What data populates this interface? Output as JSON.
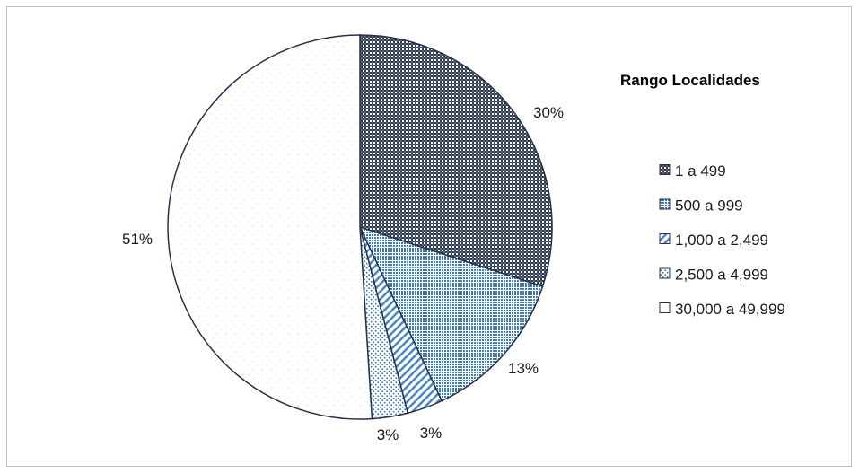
{
  "chart_data": {
    "type": "pie",
    "title": "",
    "legend_title": "Rango Localidades",
    "legend_position": "right",
    "categories": [
      "1 a 499",
      "500 a 999",
      "1,000 a 2,499",
      "2,500 a 4,999",
      "30,000 a 49,999"
    ],
    "values": [
      30,
      13,
      3,
      3,
      51
    ],
    "labels": [
      "30%",
      "13%",
      "3%",
      "3%",
      "51%"
    ],
    "colors": [
      "#2e3a4d",
      "#4a86c5",
      "#5b9bd5",
      "#3a7fb8",
      "#d9d9d9"
    ]
  }
}
